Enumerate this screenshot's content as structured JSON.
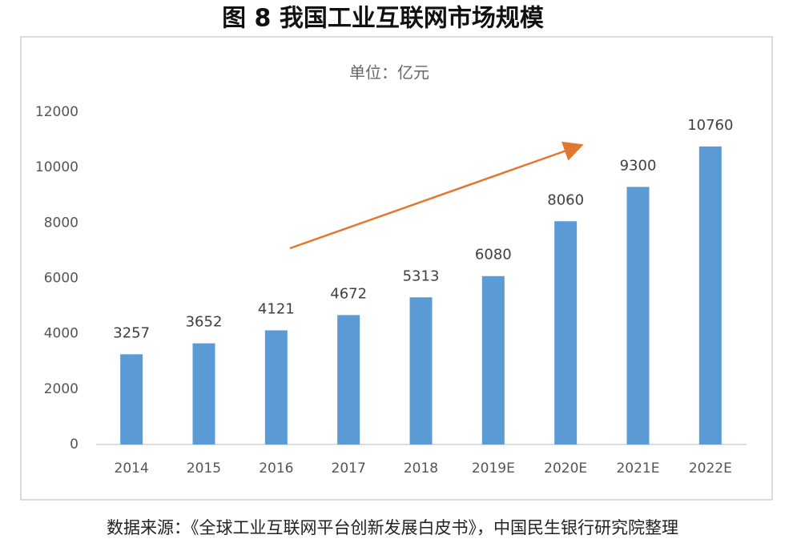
{
  "chart_data": {
    "type": "bar",
    "title": "图 8  我国工业互联网市场规模",
    "subtitle": "单位：亿元",
    "source": "数据来源：《全球工业互联网平台创新发展白皮书》，中国民生银行研究院整理",
    "categories": [
      "2014",
      "2015",
      "2016",
      "2017",
      "2018",
      "2019E",
      "2020E",
      "2021E",
      "2022E"
    ],
    "values": [
      3257,
      3652,
      4121,
      4672,
      5313,
      6080,
      8060,
      9300,
      10760
    ],
    "color": "#5b9bd5",
    "ylim": [
      0,
      12000
    ],
    "yticks": [
      0,
      2000,
      4000,
      6000,
      8000,
      10000,
      12000
    ],
    "grid": false
  }
}
